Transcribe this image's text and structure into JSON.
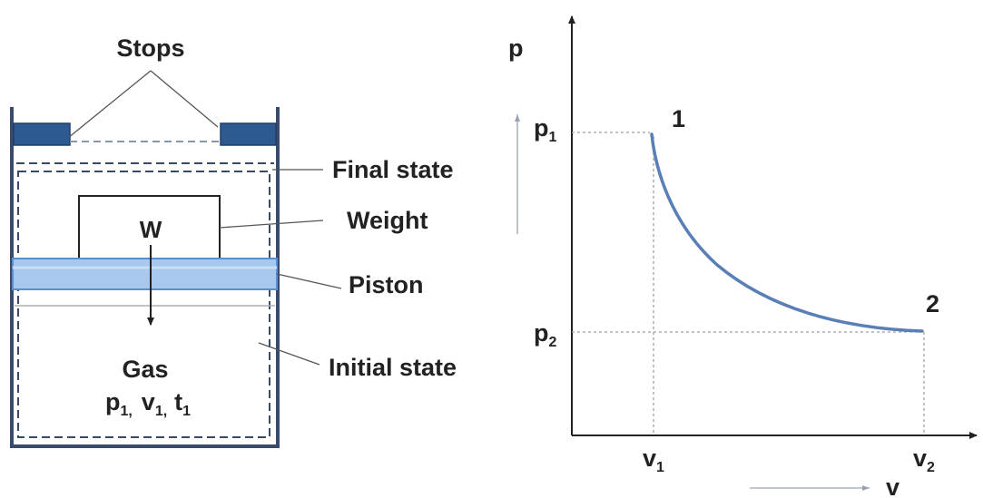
{
  "diagram": {
    "left": {
      "stops_label": "Stops",
      "final_state_label": "Final state",
      "weight_label": "Weight",
      "piston_label": "Piston",
      "initial_state_label": "Initial state",
      "weight_symbol": "W",
      "gas_label": "Gas",
      "gas_props": {
        "p": "p",
        "p_sub": "1,",
        "v": "v",
        "v_sub": "1,",
        "t": "t",
        "t_sub": "1"
      }
    },
    "right": {
      "y_axis": "p",
      "x_axis": "v",
      "p1": {
        "main": "p",
        "sub": "1"
      },
      "p2": {
        "main": "p",
        "sub": "2"
      },
      "v1": {
        "main": "v",
        "sub": "1"
      },
      "v2": {
        "main": "v",
        "sub": "2"
      },
      "point1": "1",
      "point2": "2"
    },
    "colors": {
      "ink": "#222222",
      "wall": "#3a4a6a",
      "stop_fill": "#2e5a92",
      "piston_fill": "#a8c8ee",
      "piston_edge": "#5b8ed0",
      "curve": "#5a7fb6",
      "guide": "#a0a0a0"
    }
  }
}
